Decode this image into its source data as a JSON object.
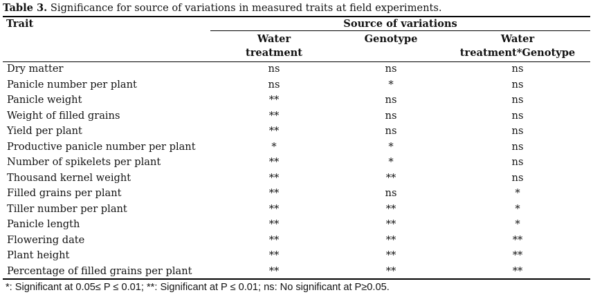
{
  "caption": {
    "label": "Table 3.",
    "text": " Significance for source of variations in measured traits at field experiments."
  },
  "header": {
    "trait": "Trait",
    "source": "Source of variations",
    "col1_line1": "Water",
    "col1_line2": "treatment",
    "col2": "Genotype",
    "col3_line1": "Water",
    "col3_line2": "treatment*Genotype"
  },
  "rows": [
    {
      "trait": "Dry matter",
      "water": "ns",
      "genotype": "ns",
      "interaction": "ns"
    },
    {
      "trait": "Panicle number per plant",
      "water": "ns",
      "genotype": "*",
      "interaction": "ns"
    },
    {
      "trait": "Panicle weight",
      "water": "**",
      "genotype": "ns",
      "interaction": "ns"
    },
    {
      "trait": "Weight of filled grains",
      "water": "**",
      "genotype": "ns",
      "interaction": "ns"
    },
    {
      "trait": "Yield per plant",
      "water": "**",
      "genotype": "ns",
      "interaction": "ns"
    },
    {
      "trait": "Productive panicle number per plant",
      "water": "*",
      "genotype": "*",
      "interaction": "ns"
    },
    {
      "trait": "Number of spikelets per plant",
      "water": "**",
      "genotype": "*",
      "interaction": "ns"
    },
    {
      "trait": "Thousand kernel weight",
      "water": "**",
      "genotype": "**",
      "interaction": "ns"
    },
    {
      "trait": "Filled grains per plant",
      "water": "**",
      "genotype": "ns",
      "interaction": "*"
    },
    {
      "trait": "Tiller number per plant",
      "water": "**",
      "genotype": "**",
      "interaction": "*"
    },
    {
      "trait": "Panicle length",
      "water": "**",
      "genotype": "**",
      "interaction": "*"
    },
    {
      "trait": "Flowering date",
      "water": "**",
      "genotype": "**",
      "interaction": "**"
    },
    {
      "trait": "Plant height",
      "water": "**",
      "genotype": "**",
      "interaction": "**"
    },
    {
      "trait": "Percentage of filled grains per plant",
      "water": "**",
      "genotype": "**",
      "interaction": "**"
    }
  ],
  "footnote": "*: Significant at 0.05≤ P ≤ 0.01;    **: Significant at P ≤ 0.01; ns: No significant at P≥0.05."
}
